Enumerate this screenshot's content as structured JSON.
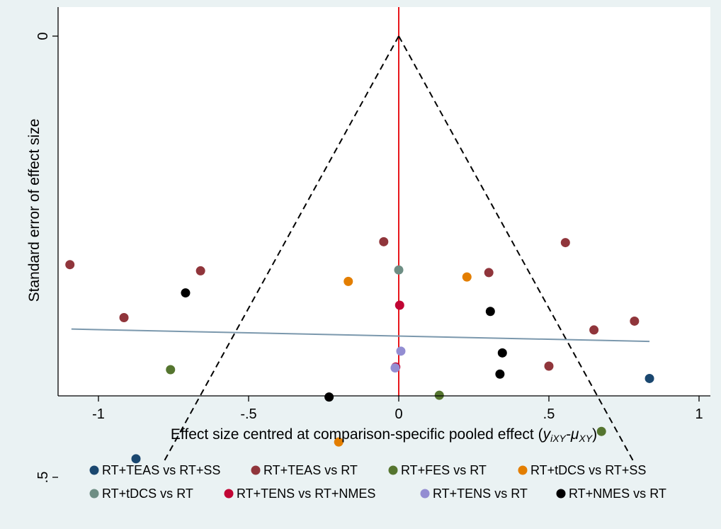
{
  "chart_data": {
    "type": "scatter",
    "title": "",
    "xlabel_main": "Effect size centred at comparison-specific pooled effect (",
    "xlabel_math": "y_iXY-μ_XY",
    "xlabel_close": ")",
    "xlabel_y": "y",
    "xlabel_y_sub": "iXY",
    "xlabel_minus": "-",
    "xlabel_mu": "μ",
    "xlabel_mu_sub": "XY",
    "ylabel": "Standard error of effect size",
    "xlim": [
      -1.1,
      1.05
    ],
    "ylim": [
      0.5,
      0
    ],
    "x_ticks": [
      {
        "value": -1,
        "label": "-1"
      },
      {
        "value": -0.5,
        "label": "-.5"
      },
      {
        "value": 0,
        "label": "0"
      },
      {
        "value": 0.5,
        "label": ".5"
      },
      {
        "value": 1,
        "label": "1"
      }
    ],
    "y_ticks": [
      {
        "value": 0,
        "label": "0"
      },
      {
        "value": 0.5,
        "label": ".5"
      }
    ],
    "grid": false,
    "legend_position": "bottom",
    "reference_line": {
      "x": 0,
      "color": "#e8161b"
    },
    "funnel_limits": {
      "apex": [
        0,
        0
      ],
      "left_end": [
        -0.785,
        0.484
      ],
      "right_end": [
        0.785,
        0.484
      ],
      "style": "dashed"
    },
    "fit_line": {
      "x": [
        -1.09,
        0.835
      ],
      "y": [
        0.332,
        0.346
      ],
      "color": "#7b98ad"
    },
    "series": [
      {
        "name": "RT+TEAS vs RT+SS",
        "color": "#1a476f",
        "points": [
          [
            -0.875,
            0.479
          ],
          [
            0.835,
            0.388
          ]
        ]
      },
      {
        "name": "RT+TEAS vs RT",
        "color": "#90353b",
        "points": [
          [
            -1.095,
            0.259
          ],
          [
            -0.915,
            0.319
          ],
          [
            -0.66,
            0.266
          ],
          [
            -0.05,
            0.233
          ],
          [
            0.3,
            0.268
          ],
          [
            0.555,
            0.234
          ],
          [
            0.5,
            0.374
          ],
          [
            0.65,
            0.333
          ],
          [
            0.785,
            0.323
          ]
        ]
      },
      {
        "name": "RT+FES vs RT",
        "color": "#55752f",
        "points": [
          [
            -0.76,
            0.378
          ],
          [
            0.135,
            0.407
          ],
          [
            0.675,
            0.448
          ]
        ]
      },
      {
        "name": "RT+tDCS vs RT+SS",
        "color": "#e37e00",
        "points": [
          [
            -0.168,
            0.278
          ],
          [
            -0.2,
            0.46
          ],
          [
            0.227,
            0.273
          ]
        ]
      },
      {
        "name": "RT+tDCS vs RT",
        "color": "#6e8e84",
        "points": [
          [
            0,
            0.265
          ]
        ]
      },
      {
        "name": "RT+TENS vs RT+NMES",
        "color": "#c10534",
        "points": [
          [
            0.003,
            0.305
          ],
          [
            -0.01,
            0.375
          ]
        ]
      },
      {
        "name": "RT+TENS vs RT",
        "color": "#938dd2",
        "points": [
          [
            0.007,
            0.357
          ],
          [
            -0.012,
            0.376
          ]
        ]
      },
      {
        "name": "RT+NMES vs RT",
        "color": "#000000",
        "points": [
          [
            -0.71,
            0.291
          ],
          [
            -0.232,
            0.409
          ],
          [
            0.305,
            0.312
          ],
          [
            0.345,
            0.359
          ],
          [
            0.337,
            0.383
          ]
        ]
      }
    ]
  }
}
